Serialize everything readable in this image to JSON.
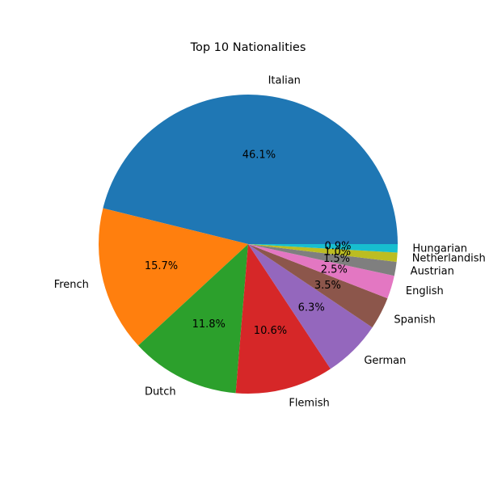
{
  "chart_data": {
    "type": "pie",
    "title": "Top 10 Nationalities",
    "categories": [
      "Italian",
      "French",
      "Dutch",
      "Flemish",
      "German",
      "Spanish",
      "English",
      "Austrian",
      "Netherlandish",
      "Hungarian"
    ],
    "values": [
      46.1,
      15.7,
      11.8,
      10.6,
      6.3,
      3.5,
      2.5,
      1.5,
      1.0,
      0.9
    ],
    "percent_labels": [
      "46.1%",
      "15.7%",
      "11.8%",
      "10.6%",
      "6.3%",
      "3.5%",
      "2.5%",
      "1.5%",
      "1.0%",
      "0.9%"
    ],
    "colors": [
      "#1f77b4",
      "#ff7f0e",
      "#2ca02c",
      "#d62728",
      "#9467bd",
      "#8c564b",
      "#e377c2",
      "#7f7f7f",
      "#bcbd22",
      "#17becf"
    ],
    "start_angle": "3 o'clock",
    "direction": "counterclockwise",
    "legend": "none"
  }
}
